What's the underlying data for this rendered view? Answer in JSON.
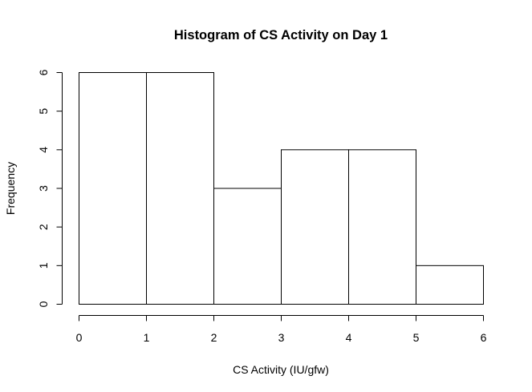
{
  "chart_data": {
    "type": "bar",
    "subtype": "histogram",
    "title": "Histogram of CS Activity on Day 1",
    "xlabel": "CS Activity (IU/gfw)",
    "ylabel": "Frequency",
    "bins": [
      [
        0,
        1
      ],
      [
        1,
        2
      ],
      [
        2,
        3
      ],
      [
        3,
        4
      ],
      [
        4,
        5
      ],
      [
        5,
        6
      ]
    ],
    "values": [
      6,
      6,
      3,
      4,
      4,
      1
    ],
    "xlim": [
      0,
      6
    ],
    "ylim": [
      0,
      6
    ],
    "x_ticks": [
      "0",
      "1",
      "2",
      "3",
      "4",
      "5",
      "6"
    ],
    "y_ticks": [
      "0",
      "1",
      "2",
      "3",
      "4",
      "5",
      "6"
    ],
    "grid": false,
    "legend": "none",
    "bar_fill": "#ffffff",
    "bar_stroke": "#000000"
  }
}
